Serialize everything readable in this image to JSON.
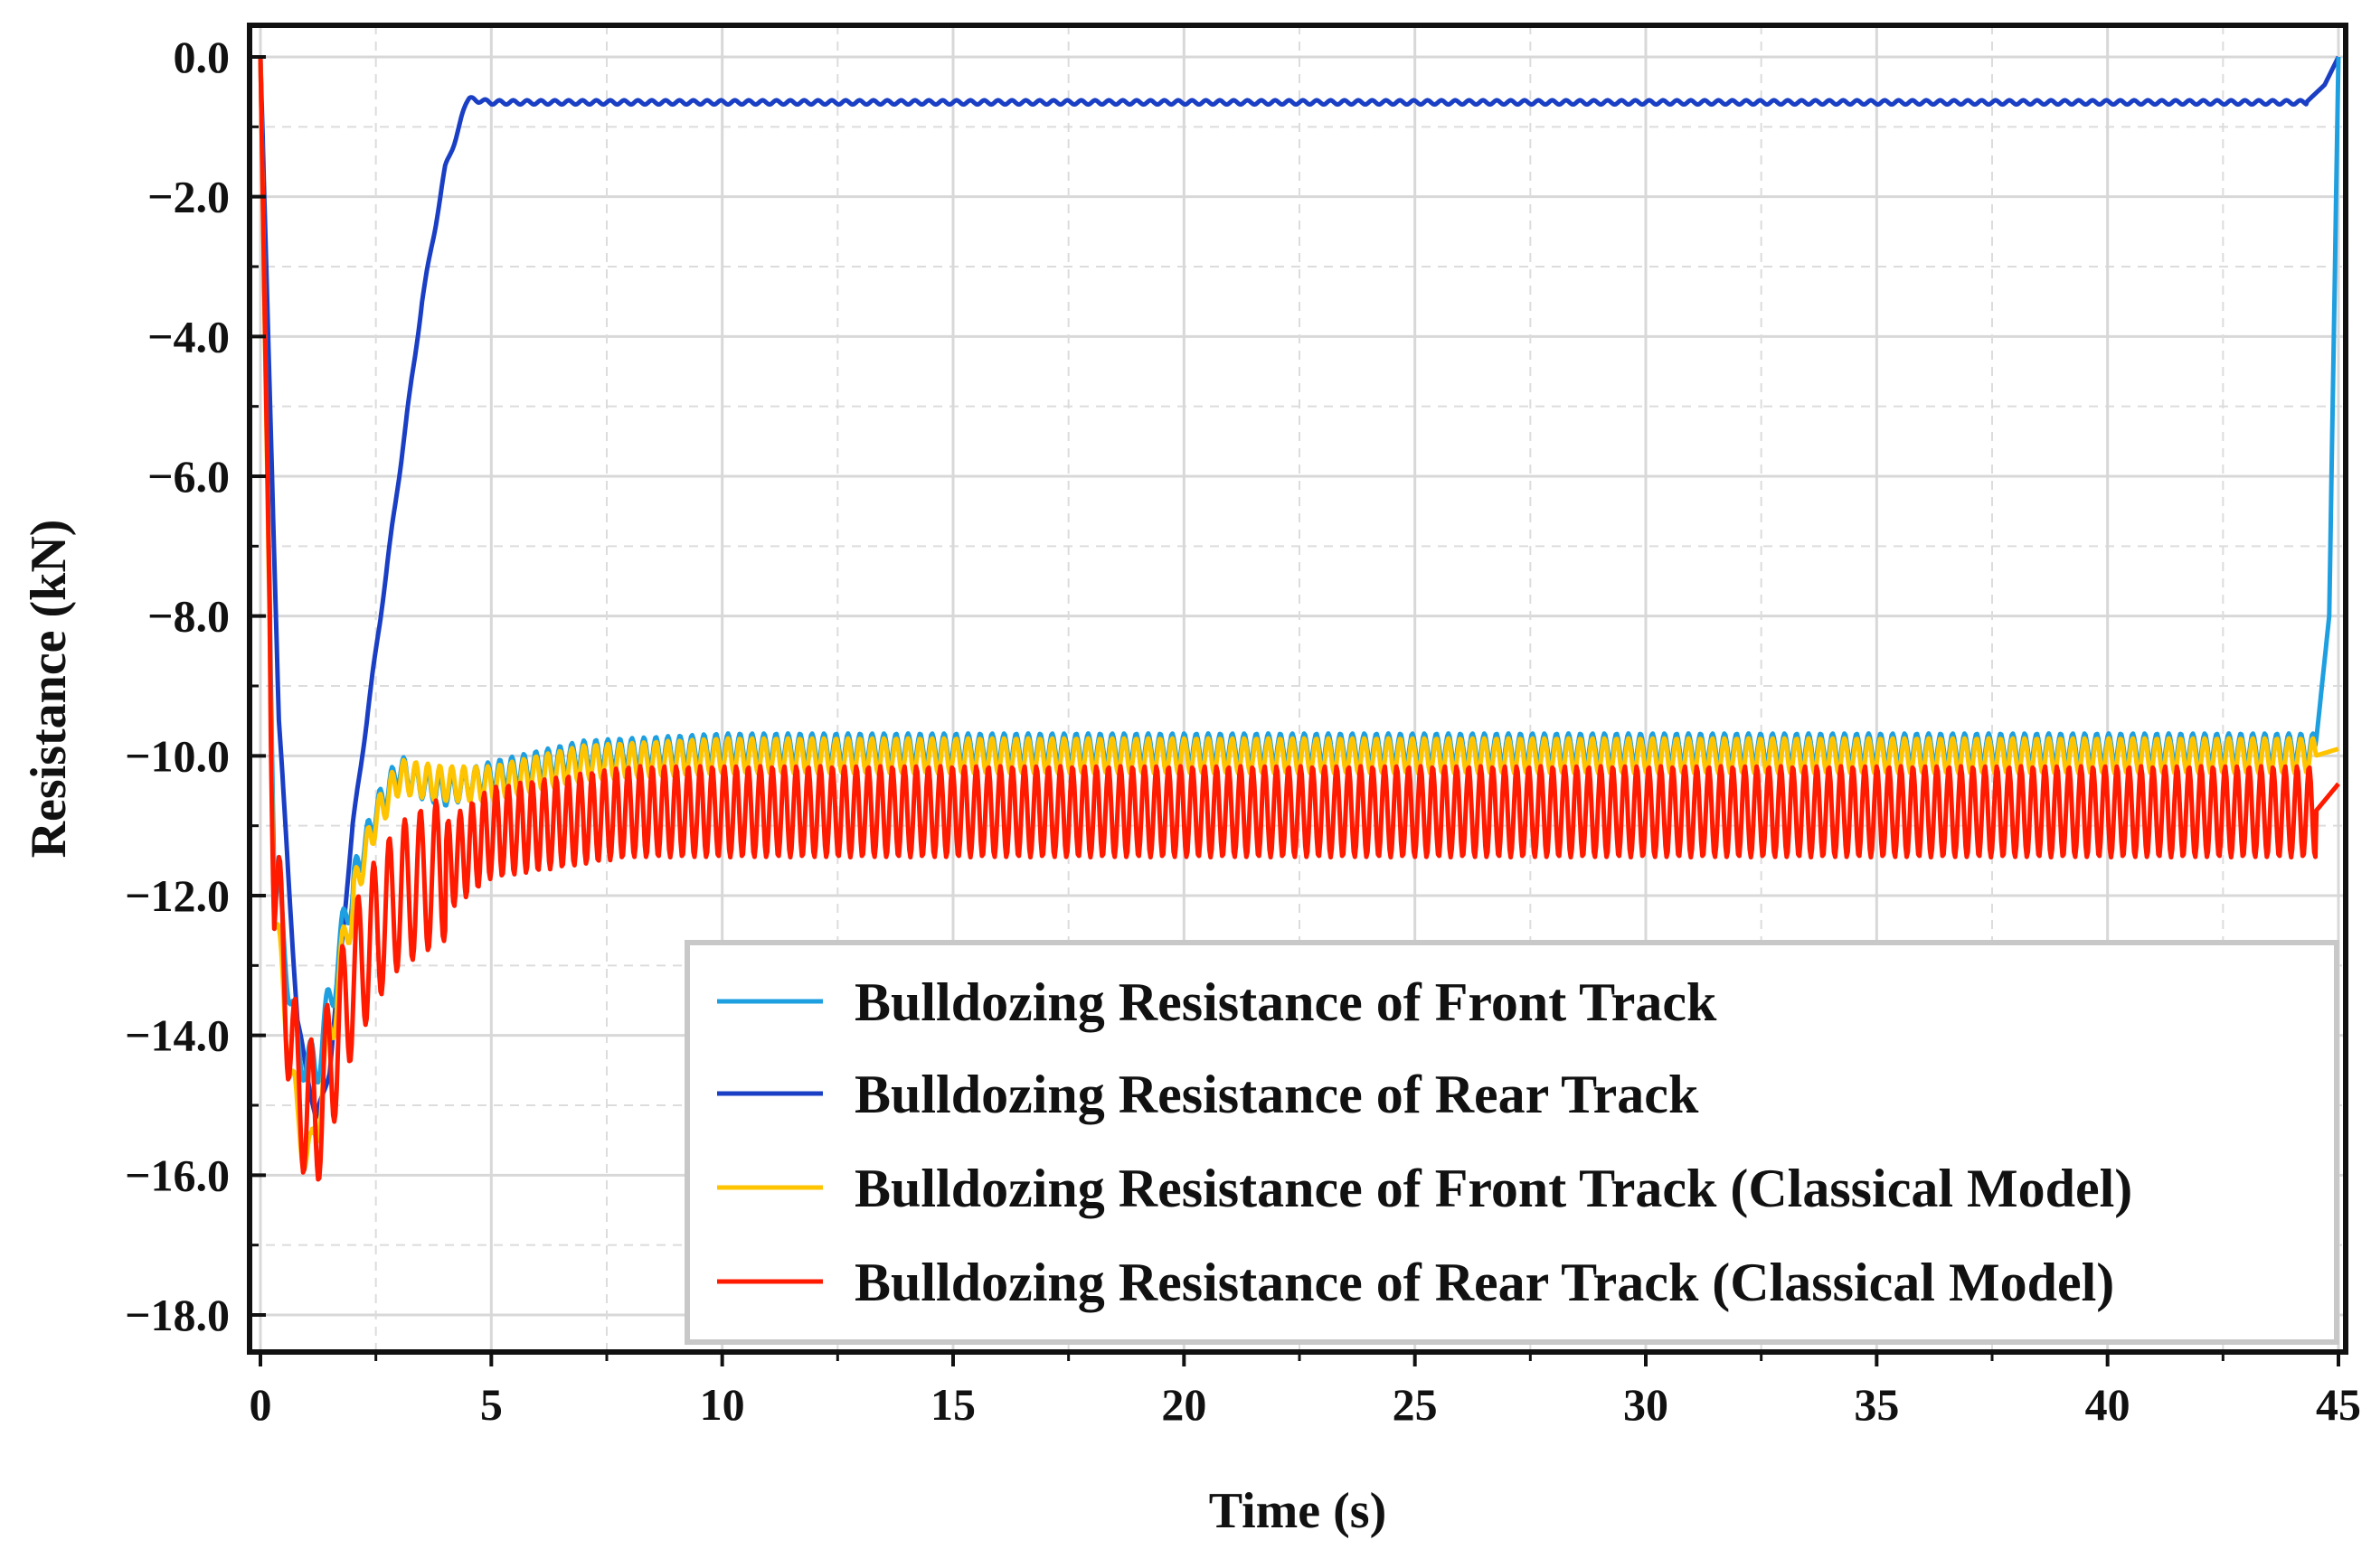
{
  "chart_data": {
    "type": "line",
    "title": "",
    "xlabel": "Time (s)",
    "ylabel": "Resistance (kN)",
    "xlim": [
      0,
      45
    ],
    "ylim": [
      -18,
      0
    ],
    "xticks": [
      0,
      5,
      10,
      15,
      20,
      25,
      30,
      35,
      40,
      45
    ],
    "xtick_labels": [
      "0",
      "5",
      "10",
      "15",
      "20",
      "25",
      "30",
      "35",
      "40",
      "45"
    ],
    "yticks": [
      0,
      -2,
      -4,
      -6,
      -8,
      -10,
      -12,
      -14,
      -16,
      -18
    ],
    "ytick_labels": [
      "0.0",
      "−2.0",
      "−4.0",
      "−6.0",
      "−8.0",
      "−10.0",
      "−12.0",
      "−14.0",
      "−16.0",
      "−18.0"
    ],
    "grid": true,
    "legend_position": "bottom-right",
    "series": [
      {
        "name": "Bulldozing Resistance of Front Track",
        "color": "#1E9FE0",
        "base": [
          [
            0,
            0
          ],
          [
            0.3,
            -11.5
          ],
          [
            0.8,
            -14.2
          ],
          [
            1.2,
            -14.5
          ],
          [
            1.6,
            -13.2
          ],
          [
            2.0,
            -11.8
          ],
          [
            2.5,
            -10.8
          ],
          [
            3.0,
            -10.2
          ],
          [
            3.5,
            -10.4
          ],
          [
            4.0,
            -10.5
          ],
          [
            5.0,
            -10.3
          ],
          [
            7.0,
            -10.0
          ],
          [
            10.0,
            -9.9
          ],
          [
            44.5,
            -9.9
          ],
          [
            44.8,
            -8.0
          ],
          [
            45.0,
            0
          ]
        ],
        "oscillation": {
          "start": 2.0,
          "end": 44.5,
          "period": 0.26,
          "amplitude": 0.22
        }
      },
      {
        "name": "Bulldozing Resistance of Rear Track",
        "color": "#1A3FC4",
        "base": [
          [
            0,
            0
          ],
          [
            0.4,
            -9.5
          ],
          [
            0.8,
            -13.8
          ],
          [
            1.2,
            -15.2
          ],
          [
            1.5,
            -14.5
          ],
          [
            2.0,
            -11.0
          ],
          [
            2.5,
            -8.5
          ],
          [
            3.0,
            -6.0
          ],
          [
            3.5,
            -3.5
          ],
          [
            4.0,
            -1.6
          ],
          [
            4.5,
            -0.6
          ],
          [
            5.0,
            -0.65
          ],
          [
            44.3,
            -0.65
          ],
          [
            44.7,
            -0.4
          ],
          [
            45.0,
            0
          ]
        ],
        "oscillation": {
          "start": 4.5,
          "end": 44.3,
          "period": 0.3,
          "amplitude": 0.03
        }
      },
      {
        "name": "Bulldozing Resistance of Front Track (Classical Model)",
        "color": "#FFC400",
        "base": [
          [
            0,
            0
          ],
          [
            0.3,
            -12.2
          ],
          [
            0.8,
            -15.3
          ],
          [
            1.1,
            -15.8
          ],
          [
            1.5,
            -14.0
          ],
          [
            2.0,
            -12.0
          ],
          [
            2.5,
            -10.9
          ],
          [
            3.0,
            -10.3
          ],
          [
            4.0,
            -10.4
          ],
          [
            5.0,
            -10.4
          ],
          [
            7.0,
            -10.1
          ],
          [
            10.0,
            -10.0
          ],
          [
            44.5,
            -10.0
          ],
          [
            45.0,
            -9.9
          ]
        ],
        "oscillation": {
          "start": 2.0,
          "end": 44.5,
          "period": 0.26,
          "amplitude": 0.25
        }
      },
      {
        "name": "Bulldozing Resistance of Rear Track (Classical Model)",
        "color": "#FF1A00",
        "base": [
          [
            0,
            0
          ],
          [
            0.3,
            -11.8
          ],
          [
            0.8,
            -14.8
          ],
          [
            1.2,
            -15.2
          ],
          [
            1.6,
            -14.2
          ],
          [
            2.0,
            -13.2
          ],
          [
            2.5,
            -12.5
          ],
          [
            3.0,
            -12.0
          ],
          [
            4.0,
            -11.6
          ],
          [
            5.0,
            -11.1
          ],
          [
            6.0,
            -11.0
          ],
          [
            8.0,
            -10.8
          ],
          [
            10.0,
            -10.8
          ],
          [
            44.5,
            -10.8
          ],
          [
            45.0,
            -10.4
          ]
        ],
        "oscillation": {
          "start": 4.0,
          "end": 44.5,
          "period": 0.26,
          "amplitude": 0.65
        }
      }
    ]
  }
}
